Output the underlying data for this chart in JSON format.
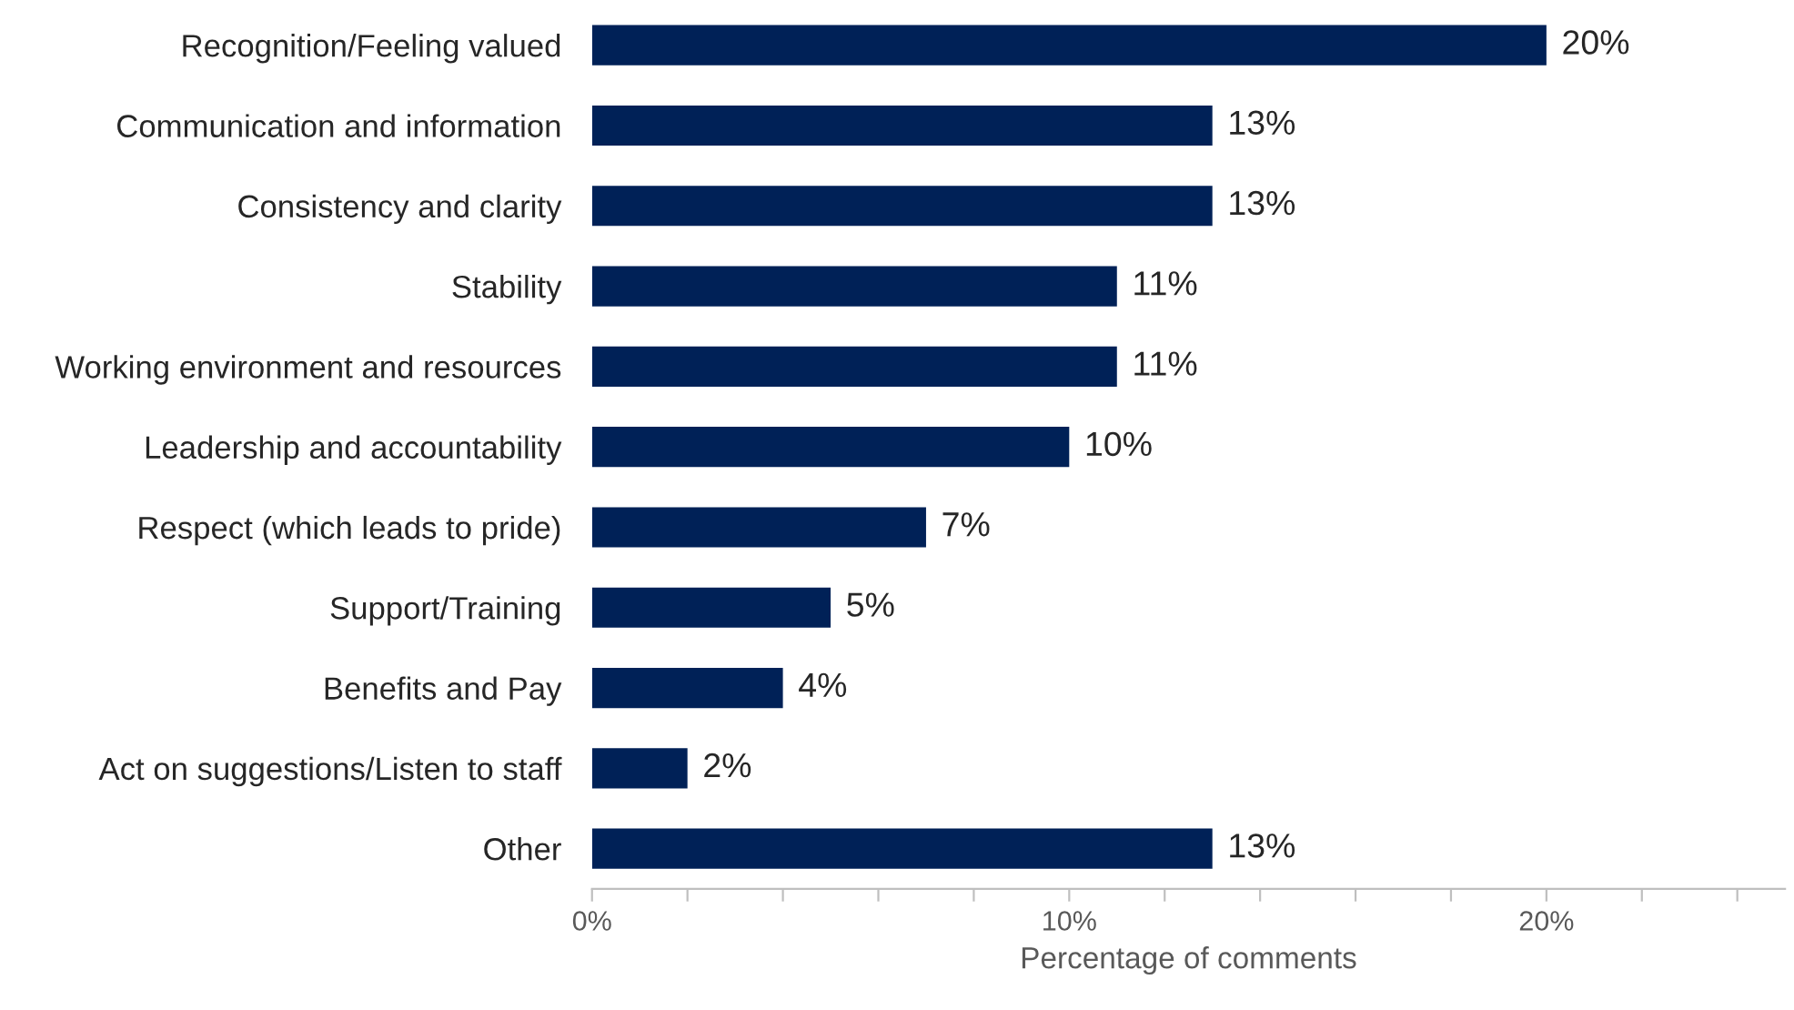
{
  "chart_data": {
    "type": "bar",
    "orientation": "horizontal",
    "xlabel": "Percentage of comments",
    "categories": [
      "Recognition/Feeling valued",
      "Communication and information",
      "Consistency and clarity",
      "Stability",
      "Working environment and resources",
      "Leadership and accountability",
      "Respect (which leads to pride)",
      "Support/Training",
      "Benefits and Pay",
      "Act on suggestions/Listen to staff",
      "Other"
    ],
    "values": [
      20,
      13,
      13,
      11,
      11,
      10,
      7,
      5,
      4,
      2,
      13
    ],
    "value_labels": [
      "20%",
      "13%",
      "13%",
      "11%",
      "11%",
      "10%",
      "7%",
      "5%",
      "4%",
      "2%",
      "13%"
    ],
    "color": "#002157",
    "xlim": [
      0,
      25
    ],
    "xticks": [
      {
        "value": 0,
        "label": "0%"
      },
      {
        "value": 2,
        "label": null
      },
      {
        "value": 4,
        "label": null
      },
      {
        "value": 6,
        "label": null
      },
      {
        "value": 8,
        "label": null
      },
      {
        "value": 10,
        "label": "10%"
      },
      {
        "value": 12,
        "label": null
      },
      {
        "value": 14,
        "label": null
      },
      {
        "value": 16,
        "label": null
      },
      {
        "value": 18,
        "label": null
      },
      {
        "value": 20,
        "label": "20%"
      },
      {
        "value": 22,
        "label": null
      },
      {
        "value": 24,
        "label": null
      }
    ],
    "grid": false,
    "legend": false
  }
}
